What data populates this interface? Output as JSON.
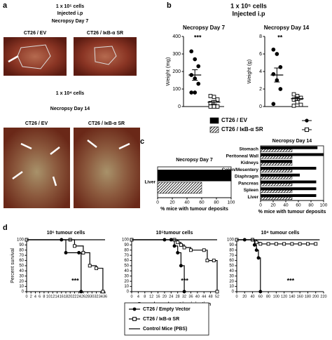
{
  "figure": {
    "panel_labels": [
      "a",
      "b",
      "c",
      "d"
    ],
    "a_top": {
      "cells": "1 x 10⁵ cells",
      "route": "Injected i.p",
      "necropsy": "Necropsy Day 7",
      "left": "CT26 / EV",
      "right": "CT26 / IκB-α SR"
    },
    "a_bottom": {
      "cells": "1 x 10⁴ cells",
      "necropsy": "Necropsy Day 14",
      "left": "CT26 / EV",
      "right": "CT26 / IκB-α SR"
    },
    "b_title": [
      "1 x 10⁵ cells",
      "Injected i.p"
    ]
  },
  "chart_data": [
    {
      "type": "dotplot",
      "title": "Necropsy Day 7",
      "y_label": "Weight (mg)",
      "ylim": [
        0,
        400
      ],
      "yticks": [
        0,
        100,
        200,
        300,
        400
      ],
      "annotation": "***",
      "series": [
        {
          "name": "CT26 / EV",
          "color": "#000000",
          "marker": "circle",
          "values": [
            315,
            270,
            230,
            180,
            160,
            130,
            80,
            80
          ],
          "mean": 180,
          "error": 30
        },
        {
          "name": "CT26 / IκB-α SR",
          "color": "#000000",
          "marker": "square",
          "values": [
            60,
            55,
            40,
            20,
            0,
            0,
            0
          ],
          "mean": 25,
          "error": 10
        }
      ]
    },
    {
      "type": "dotplot",
      "title": "Necropsy Day 14",
      "y_label": "Weight (g)",
      "ylim": [
        0,
        8
      ],
      "yticks": [
        0,
        2,
        4,
        6,
        8
      ],
      "annotation": "**",
      "series": [
        {
          "color": "#000000",
          "marker": "circle",
          "values": [
            6.5,
            6,
            4.5,
            3.7,
            3,
            2,
            0.3
          ],
          "mean": 3.6,
          "error": 0.8
        },
        {
          "color": "#000000",
          "marker": "square",
          "values": [
            1.4,
            1.2,
            1,
            0.8,
            0.5,
            0.2,
            0.1
          ],
          "mean": 0.9,
          "error": 0.2
        }
      ]
    },
    {
      "type": "hbar",
      "title": "Necropsy  Day 7",
      "x_label": "% mice with tumour deposits",
      "categories": [
        "Liver"
      ],
      "xlim": [
        0,
        100
      ],
      "xticks": [
        0,
        20,
        40,
        60,
        80,
        100
      ],
      "series": [
        {
          "color": "#000000",
          "hatch": false,
          "values": [
            100
          ]
        },
        {
          "color": "#000000",
          "hatch": true,
          "values": [
            60
          ]
        }
      ]
    },
    {
      "type": "hbar",
      "title": "Necropsy  Day 14",
      "x_label": "% mice with tumour deposits",
      "categories": [
        "Stomach",
        "Peritoneal Wall",
        "Kidneys",
        "Colon/Mesentery",
        "Diaphragm",
        "Pancreas",
        "Spleen",
        "Liver"
      ],
      "xlim": [
        0,
        100
      ],
      "xticks": [
        0,
        20,
        40,
        60,
        80,
        100
      ],
      "series": [
        {
          "color": "#000000",
          "hatch": false,
          "values": [
            90,
            100,
            50,
            88,
            62,
            88,
            88,
            88
          ]
        },
        {
          "color": "#000000",
          "hatch": true,
          "values": [
            50,
            50,
            50,
            50,
            50,
            50,
            50,
            50
          ]
        }
      ]
    },
    {
      "type": "step",
      "title": "10⁶ tumour cells",
      "y_label": "Percent survival",
      "annotation": "***",
      "xlim": [
        0,
        36
      ],
      "xticks": [
        0,
        2,
        4,
        6,
        8,
        10,
        12,
        14,
        16,
        18,
        20,
        22,
        24,
        26,
        28,
        30,
        32,
        34,
        36
      ],
      "ylim": [
        0,
        100
      ],
      "yticks": [
        0,
        10,
        20,
        30,
        40,
        50,
        60,
        70,
        80,
        90,
        100
      ],
      "series": [
        {
          "name": "CT26 / Empty Vector",
          "color": "#000000",
          "marker": "circle",
          "x": [
            0,
            16,
            18,
            24,
            25
          ],
          "values": [
            100,
            100,
            75,
            75,
            0
          ]
        },
        {
          "name": "CT26 / IκB-α SR",
          "color": "#000000",
          "marker": "square",
          "x": [
            0,
            20,
            22,
            26,
            29,
            32,
            35
          ],
          "values": [
            100,
            100,
            88,
            75,
            50,
            45,
            0
          ]
        },
        {
          "name": "Control Mice (PBS)",
          "color": "#000000",
          "marker": "none",
          "x": [
            0,
            36
          ],
          "values": [
            100,
            100
          ]
        }
      ]
    },
    {
      "type": "step",
      "title": "10⁵tumour cells",
      "x_label": "Days elapsed post i.p. injection",
      "annotation": "***",
      "xlim": [
        0,
        52
      ],
      "xticks": [
        0,
        4,
        8,
        12,
        16,
        20,
        24,
        28,
        32,
        36,
        40,
        44,
        48,
        52
      ],
      "ylim": [
        0,
        100
      ],
      "yticks": [
        0,
        10,
        20,
        30,
        40,
        50,
        60,
        70,
        80,
        90,
        100
      ],
      "series": [
        {
          "color": "#000000",
          "marker": "circle",
          "x": [
            0,
            20,
            24,
            26,
            28,
            30,
            32
          ],
          "values": [
            100,
            100,
            100,
            88,
            75,
            50,
            0
          ]
        },
        {
          "color": "#000000",
          "marker": "square",
          "x": [
            0,
            26,
            28,
            30,
            32,
            36,
            44,
            46,
            50,
            52
          ],
          "values": [
            100,
            100,
            95,
            90,
            85,
            80,
            80,
            60,
            60,
            0
          ]
        },
        {
          "color": "#000000",
          "marker": "none",
          "x": [
            0,
            52
          ],
          "values": [
            100,
            100
          ]
        }
      ]
    },
    {
      "type": "step",
      "title": "10⁴ tumour cells",
      "annotation": "***",
      "xlim": [
        0,
        220
      ],
      "xticks": [
        0,
        20,
        40,
        60,
        80,
        100,
        120,
        140,
        160,
        180,
        200,
        220
      ],
      "ylim": [
        0,
        100
      ],
      "yticks": [
        0,
        10,
        20,
        30,
        40,
        50,
        60,
        70,
        80,
        90,
        100
      ],
      "series": [
        {
          "color": "#000000",
          "marker": "circle",
          "x": [
            0,
            20,
            40,
            45,
            50,
            55,
            60
          ],
          "values": [
            100,
            100,
            100,
            90,
            80,
            65,
            0
          ]
        },
        {
          "color": "#000000",
          "marker": "square",
          "x": [
            0,
            40,
            50,
            60,
            80,
            100,
            120,
            140,
            160,
            180,
            200
          ],
          "values": [
            100,
            100,
            95,
            92,
            92,
            92,
            92,
            92,
            92,
            92,
            92
          ]
        },
        {
          "color": "#000000",
          "marker": "none",
          "x": [
            0,
            210
          ],
          "values": [
            100,
            100
          ]
        }
      ]
    }
  ]
}
